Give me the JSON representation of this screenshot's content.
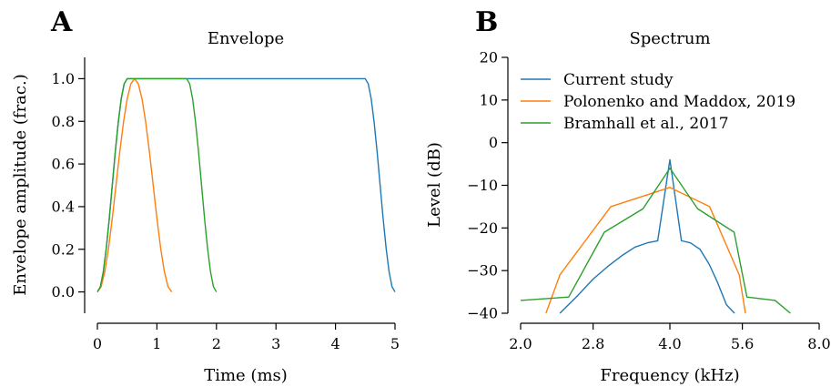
{
  "chart_data": [
    {
      "panel": "A",
      "type": "line",
      "title": "Envelope",
      "xlabel": "Time (ms)",
      "ylabel": "Envelope amplitude (frac.)",
      "xlim": [
        0,
        5
      ],
      "ylim": [
        -0.1,
        1.1
      ],
      "xticks": [
        0,
        1,
        2,
        3,
        4,
        5
      ],
      "xtick_labels": [
        "0",
        "1",
        "2",
        "3",
        "4",
        "5"
      ],
      "yticks": [
        0.0,
        0.2,
        0.4,
        0.6,
        0.8,
        1.0
      ],
      "ytick_labels": [
        "0.0",
        "0.2",
        "0.4",
        "0.6",
        "0.8",
        "1.0"
      ],
      "grid": false,
      "series": [
        {
          "color": "#1f77b4",
          "x": [
            0,
            0.05,
            0.1,
            0.15,
            0.2,
            0.25,
            0.3,
            0.35,
            0.4,
            0.45,
            0.5,
            4.5,
            4.55,
            4.6,
            4.65,
            4.7,
            4.75,
            4.8,
            4.85,
            4.9,
            4.95,
            5.0
          ],
          "y": [
            0.0,
            0.024,
            0.095,
            0.206,
            0.345,
            0.5,
            0.655,
            0.794,
            0.905,
            0.976,
            1.0,
            1.0,
            0.976,
            0.905,
            0.794,
            0.655,
            0.5,
            0.345,
            0.206,
            0.095,
            0.024,
            0.0
          ]
        },
        {
          "color": "#ff7f0e",
          "x": [
            0,
            0.0625,
            0.125,
            0.1875,
            0.25,
            0.3125,
            0.375,
            0.4375,
            0.5,
            0.5625,
            0.625,
            0.6875,
            0.75,
            0.8125,
            0.875,
            0.9375,
            1.0,
            1.0625,
            1.125,
            1.1875,
            1.25
          ],
          "y": [
            0.0,
            0.024,
            0.095,
            0.206,
            0.345,
            0.5,
            0.655,
            0.794,
            0.905,
            0.976,
            1.0,
            0.976,
            0.905,
            0.794,
            0.655,
            0.5,
            0.345,
            0.206,
            0.095,
            0.024,
            0.0
          ]
        },
        {
          "color": "#2ca02c",
          "x": [
            0,
            0.05,
            0.1,
            0.15,
            0.2,
            0.25,
            0.3,
            0.35,
            0.4,
            0.45,
            0.5,
            1.5,
            1.55,
            1.6,
            1.65,
            1.7,
            1.75,
            1.8,
            1.85,
            1.9,
            1.95,
            2.0
          ],
          "y": [
            0.0,
            0.024,
            0.095,
            0.206,
            0.345,
            0.5,
            0.655,
            0.794,
            0.905,
            0.976,
            1.0,
            1.0,
            0.976,
            0.905,
            0.794,
            0.655,
            0.5,
            0.345,
            0.206,
            0.095,
            0.024,
            0.0
          ]
        }
      ]
    },
    {
      "panel": "B",
      "type": "line",
      "title": "Spectrum",
      "xlabel": "Frequency (kHz)",
      "ylabel": "Level (dB)",
      "xscale": "log2",
      "xlim": [
        2.0,
        8.0
      ],
      "ylim": [
        -40,
        20
      ],
      "xticks": [
        2.0,
        2.8,
        4.0,
        5.6,
        8.0
      ],
      "xtick_labels": [
        "2.0",
        "2.8",
        "4.0",
        "5.6",
        "8.0"
      ],
      "yticks": [
        -40,
        -30,
        -20,
        -10,
        0,
        10,
        20
      ],
      "ytick_labels": [
        "−40",
        "−30",
        "−20",
        "−10",
        "0",
        "10",
        "20"
      ],
      "grid": false,
      "legend_position": "top-left",
      "series": [
        {
          "name": "Current study",
          "color": "#1f77b4",
          "x": [
            2.4,
            2.6,
            2.8,
            3.0,
            3.2,
            3.4,
            3.6,
            3.78,
            4.0,
            4.22,
            4.4,
            4.6,
            4.8,
            5.0,
            5.2,
            5.4
          ],
          "y": [
            -40,
            -36,
            -32,
            -29,
            -26.5,
            -24.5,
            -23.5,
            -23,
            -4,
            -23,
            -23.5,
            -25,
            -28.5,
            -33,
            -38,
            -40
          ]
        },
        {
          "name": "Polonenko and Maddox, 2019",
          "color": "#ff7f0e",
          "x": [
            2.25,
            2.4,
            3.04,
            4.0,
            4.81,
            5.52,
            5.68
          ],
          "y": [
            -40,
            -31,
            -15,
            -10.5,
            -15,
            -31,
            -40
          ]
        },
        {
          "name": "Bramhall et al., 2017",
          "color": "#2ca02c",
          "x": [
            2.0,
            2.5,
            2.95,
            3.53,
            4.0,
            4.55,
            5.39,
            5.72,
            6.52,
            7.0
          ],
          "y": [
            -37,
            -36.2,
            -21,
            -15.5,
            -6,
            -15.5,
            -21,
            -36.2,
            -37,
            -40
          ]
        }
      ]
    }
  ]
}
